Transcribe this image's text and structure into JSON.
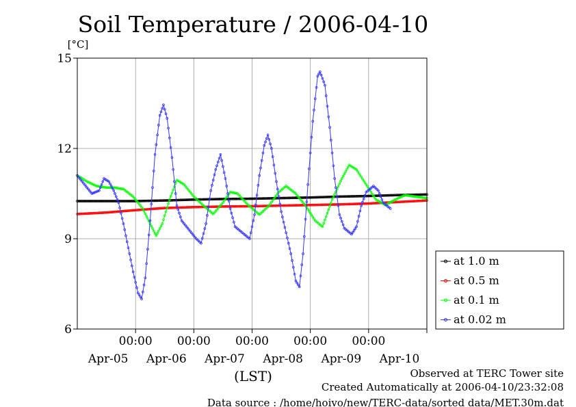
{
  "chart_data": {
    "type": "line",
    "title": "Soil Temperature / 2006-04-10",
    "ylabel": "[°C]",
    "xlabel": "(LST)",
    "ylim": [
      6,
      15
    ],
    "yticks": [
      {
        "value": 6,
        "label": "6"
      },
      {
        "value": 9,
        "label": "9"
      },
      {
        "value": 12,
        "label": "12"
      },
      {
        "value": 15,
        "label": "15"
      }
    ],
    "x_hour_range": [
      -9,
      135
    ],
    "xticks": [
      {
        "hour": 15,
        "time": "00:00",
        "date": "Apr-05"
      },
      {
        "hour": 39,
        "time": "00:00",
        "date": "Apr-06"
      },
      {
        "hour": 63,
        "time": "00:00",
        "date": "Apr-07"
      },
      {
        "hour": 87,
        "time": "00:00",
        "date": "Apr-08"
      },
      {
        "hour": 111,
        "time": "00:00",
        "date": "Apr-09"
      },
      {
        "hour": 135,
        "time": "",
        "date": "Apr-10"
      }
    ],
    "grid": true,
    "legend_position": "right",
    "series": [
      {
        "name": "at 1.0 m",
        "color": "#000000",
        "points": [
          [
            -9,
            10.25
          ],
          [
            3,
            10.25
          ],
          [
            15,
            10.25
          ],
          [
            27,
            10.27
          ],
          [
            39,
            10.3
          ],
          [
            51,
            10.32
          ],
          [
            63,
            10.33
          ],
          [
            75,
            10.35
          ],
          [
            87,
            10.37
          ],
          [
            99,
            10.4
          ],
          [
            111,
            10.42
          ],
          [
            123,
            10.45
          ],
          [
            135,
            10.47
          ]
        ]
      },
      {
        "name": "at 0.5 m",
        "color": "#ff0000",
        "points": [
          [
            -9,
            9.82
          ],
          [
            3,
            9.87
          ],
          [
            15,
            9.95
          ],
          [
            27,
            10.02
          ],
          [
            39,
            10.05
          ],
          [
            51,
            10.07
          ],
          [
            63,
            10.08
          ],
          [
            75,
            10.1
          ],
          [
            87,
            10.12
          ],
          [
            99,
            10.14
          ],
          [
            111,
            10.17
          ],
          [
            123,
            10.22
          ],
          [
            135,
            10.27
          ]
        ]
      },
      {
        "name": "at 0.1 m",
        "color": "#00ff00",
        "points": [
          [
            -9,
            11.1
          ],
          [
            -5,
            10.9
          ],
          [
            -1,
            10.75
          ],
          [
            3,
            10.7
          ],
          [
            6,
            10.7
          ],
          [
            10,
            10.65
          ],
          [
            14,
            10.4
          ],
          [
            18,
            10.0
          ],
          [
            21,
            9.5
          ],
          [
            23.5,
            9.1
          ],
          [
            26,
            9.5
          ],
          [
            29,
            10.3
          ],
          [
            32,
            10.95
          ],
          [
            35,
            10.8
          ],
          [
            39,
            10.4
          ],
          [
            43,
            10.1
          ],
          [
            47,
            9.82
          ],
          [
            51,
            10.2
          ],
          [
            54,
            10.55
          ],
          [
            57,
            10.5
          ],
          [
            61,
            10.15
          ],
          [
            66,
            9.8
          ],
          [
            70,
            10.1
          ],
          [
            74,
            10.55
          ],
          [
            77,
            10.75
          ],
          [
            81,
            10.5
          ],
          [
            85,
            10.1
          ],
          [
            89,
            9.6
          ],
          [
            92,
            9.4
          ],
          [
            96,
            10.3
          ],
          [
            100,
            11.0
          ],
          [
            103,
            11.45
          ],
          [
            106,
            11.3
          ],
          [
            110,
            10.8
          ],
          [
            114,
            10.3
          ],
          [
            118,
            10.12
          ],
          [
            122,
            10.3
          ],
          [
            126,
            10.45
          ],
          [
            130,
            10.4
          ],
          [
            135,
            10.35
          ]
        ]
      },
      {
        "name": "at 0.02 m",
        "color": "#3333ff",
        "points": [
          [
            -9,
            11.1
          ],
          [
            -6,
            10.8
          ],
          [
            -3,
            10.5
          ],
          [
            0,
            10.6
          ],
          [
            2,
            11.0
          ],
          [
            4,
            10.9
          ],
          [
            6,
            10.6
          ],
          [
            8,
            10.2
          ],
          [
            10,
            9.5
          ],
          [
            12,
            8.7
          ],
          [
            14,
            7.9
          ],
          [
            16,
            7.2
          ],
          [
            17.5,
            7.0
          ],
          [
            19,
            7.7
          ],
          [
            21,
            9.6
          ],
          [
            23,
            11.8
          ],
          [
            25,
            13.1
          ],
          [
            26.5,
            13.45
          ],
          [
            28,
            13.0
          ],
          [
            30,
            11.7
          ],
          [
            32,
            10.1
          ],
          [
            34,
            9.6
          ],
          [
            37,
            9.3
          ],
          [
            40,
            9.0
          ],
          [
            42,
            8.85
          ],
          [
            44,
            9.5
          ],
          [
            46,
            10.6
          ],
          [
            48,
            11.3
          ],
          [
            50,
            11.8
          ],
          [
            52,
            11.0
          ],
          [
            54,
            10.0
          ],
          [
            56,
            9.4
          ],
          [
            59,
            9.2
          ],
          [
            62,
            9.0
          ],
          [
            64,
            9.8
          ],
          [
            66,
            11.1
          ],
          [
            68,
            12.1
          ],
          [
            69.5,
            12.45
          ],
          [
            71,
            12.0
          ],
          [
            73,
            10.9
          ],
          [
            75,
            9.9
          ],
          [
            77,
            9.2
          ],
          [
            79,
            8.5
          ],
          [
            81,
            7.6
          ],
          [
            82.5,
            7.4
          ],
          [
            84,
            8.5
          ],
          [
            86,
            10.8
          ],
          [
            88,
            12.9
          ],
          [
            90,
            14.4
          ],
          [
            91,
            14.55
          ],
          [
            93,
            14.1
          ],
          [
            95,
            12.7
          ],
          [
            97,
            11.0
          ],
          [
            99,
            9.8
          ],
          [
            101,
            9.35
          ],
          [
            104,
            9.15
          ],
          [
            106,
            9.4
          ],
          [
            108,
            10.1
          ],
          [
            110,
            10.55
          ],
          [
            113,
            10.75
          ],
          [
            115,
            10.6
          ],
          [
            117,
            10.2
          ],
          [
            120,
            10.0
          ]
        ]
      }
    ]
  },
  "footer": {
    "line1": "Observed at TERC Tower site",
    "line2": "Created Automatically at 2006-04-10/23:32:08",
    "line3": "Data source : /home/hoivo/new/TERC-data/sorted  data/MET.30m.dat"
  }
}
